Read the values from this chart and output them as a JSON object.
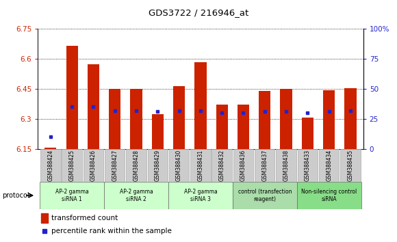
{
  "title": "GDS3722 / 216946_at",
  "samples": [
    "GSM388424",
    "GSM388425",
    "GSM388426",
    "GSM388427",
    "GSM388428",
    "GSM388429",
    "GSM388430",
    "GSM388431",
    "GSM388432",
    "GSM388436",
    "GSM388437",
    "GSM388438",
    "GSM388433",
    "GSM388434",
    "GSM388435"
  ],
  "transformed_count": [
    6.155,
    6.665,
    6.575,
    6.45,
    6.45,
    6.325,
    6.465,
    6.585,
    6.37,
    6.37,
    6.44,
    6.45,
    6.305,
    6.445,
    6.455
  ],
  "percentile_rank": [
    10,
    35,
    35,
    32,
    32,
    31,
    32,
    32,
    30,
    30,
    31,
    31,
    30,
    31,
    32
  ],
  "bar_bottom": 6.15,
  "ylim_left": [
    6.15,
    6.75
  ],
  "ylim_right": [
    0,
    100
  ],
  "yticks_left": [
    6.15,
    6.3,
    6.45,
    6.6,
    6.75
  ],
  "yticks_right": [
    0,
    25,
    50,
    75,
    100
  ],
  "groups": [
    {
      "label": "AP-2 gamma\nsiRNA 1",
      "indices": [
        0,
        1,
        2
      ]
    },
    {
      "label": "AP-2 gamma\nsiRNA 2",
      "indices": [
        3,
        4,
        5
      ]
    },
    {
      "label": "AP-2 gamma\nsiRNA 3",
      "indices": [
        6,
        7,
        8
      ]
    },
    {
      "label": "control (transfection\nreagent)",
      "indices": [
        9,
        10,
        11
      ]
    },
    {
      "label": "Non-silencing control\nsiRNA",
      "indices": [
        12,
        13,
        14
      ]
    }
  ],
  "group_bg_colors": [
    "#ccffcc",
    "#ccffcc",
    "#ccffcc",
    "#aaddaa",
    "#88dd88"
  ],
  "bar_color": "#cc2200",
  "dot_color": "#2222cc",
  "bg_color": "#ffffff",
  "grid_color": "#000000",
  "left_tick_color": "#cc2200",
  "right_tick_color": "#2222cc",
  "sample_box_color": "#cccccc",
  "legend_bar_label": "transformed count",
  "legend_dot_label": "percentile rank within the sample",
  "protocol_label": "protocol"
}
